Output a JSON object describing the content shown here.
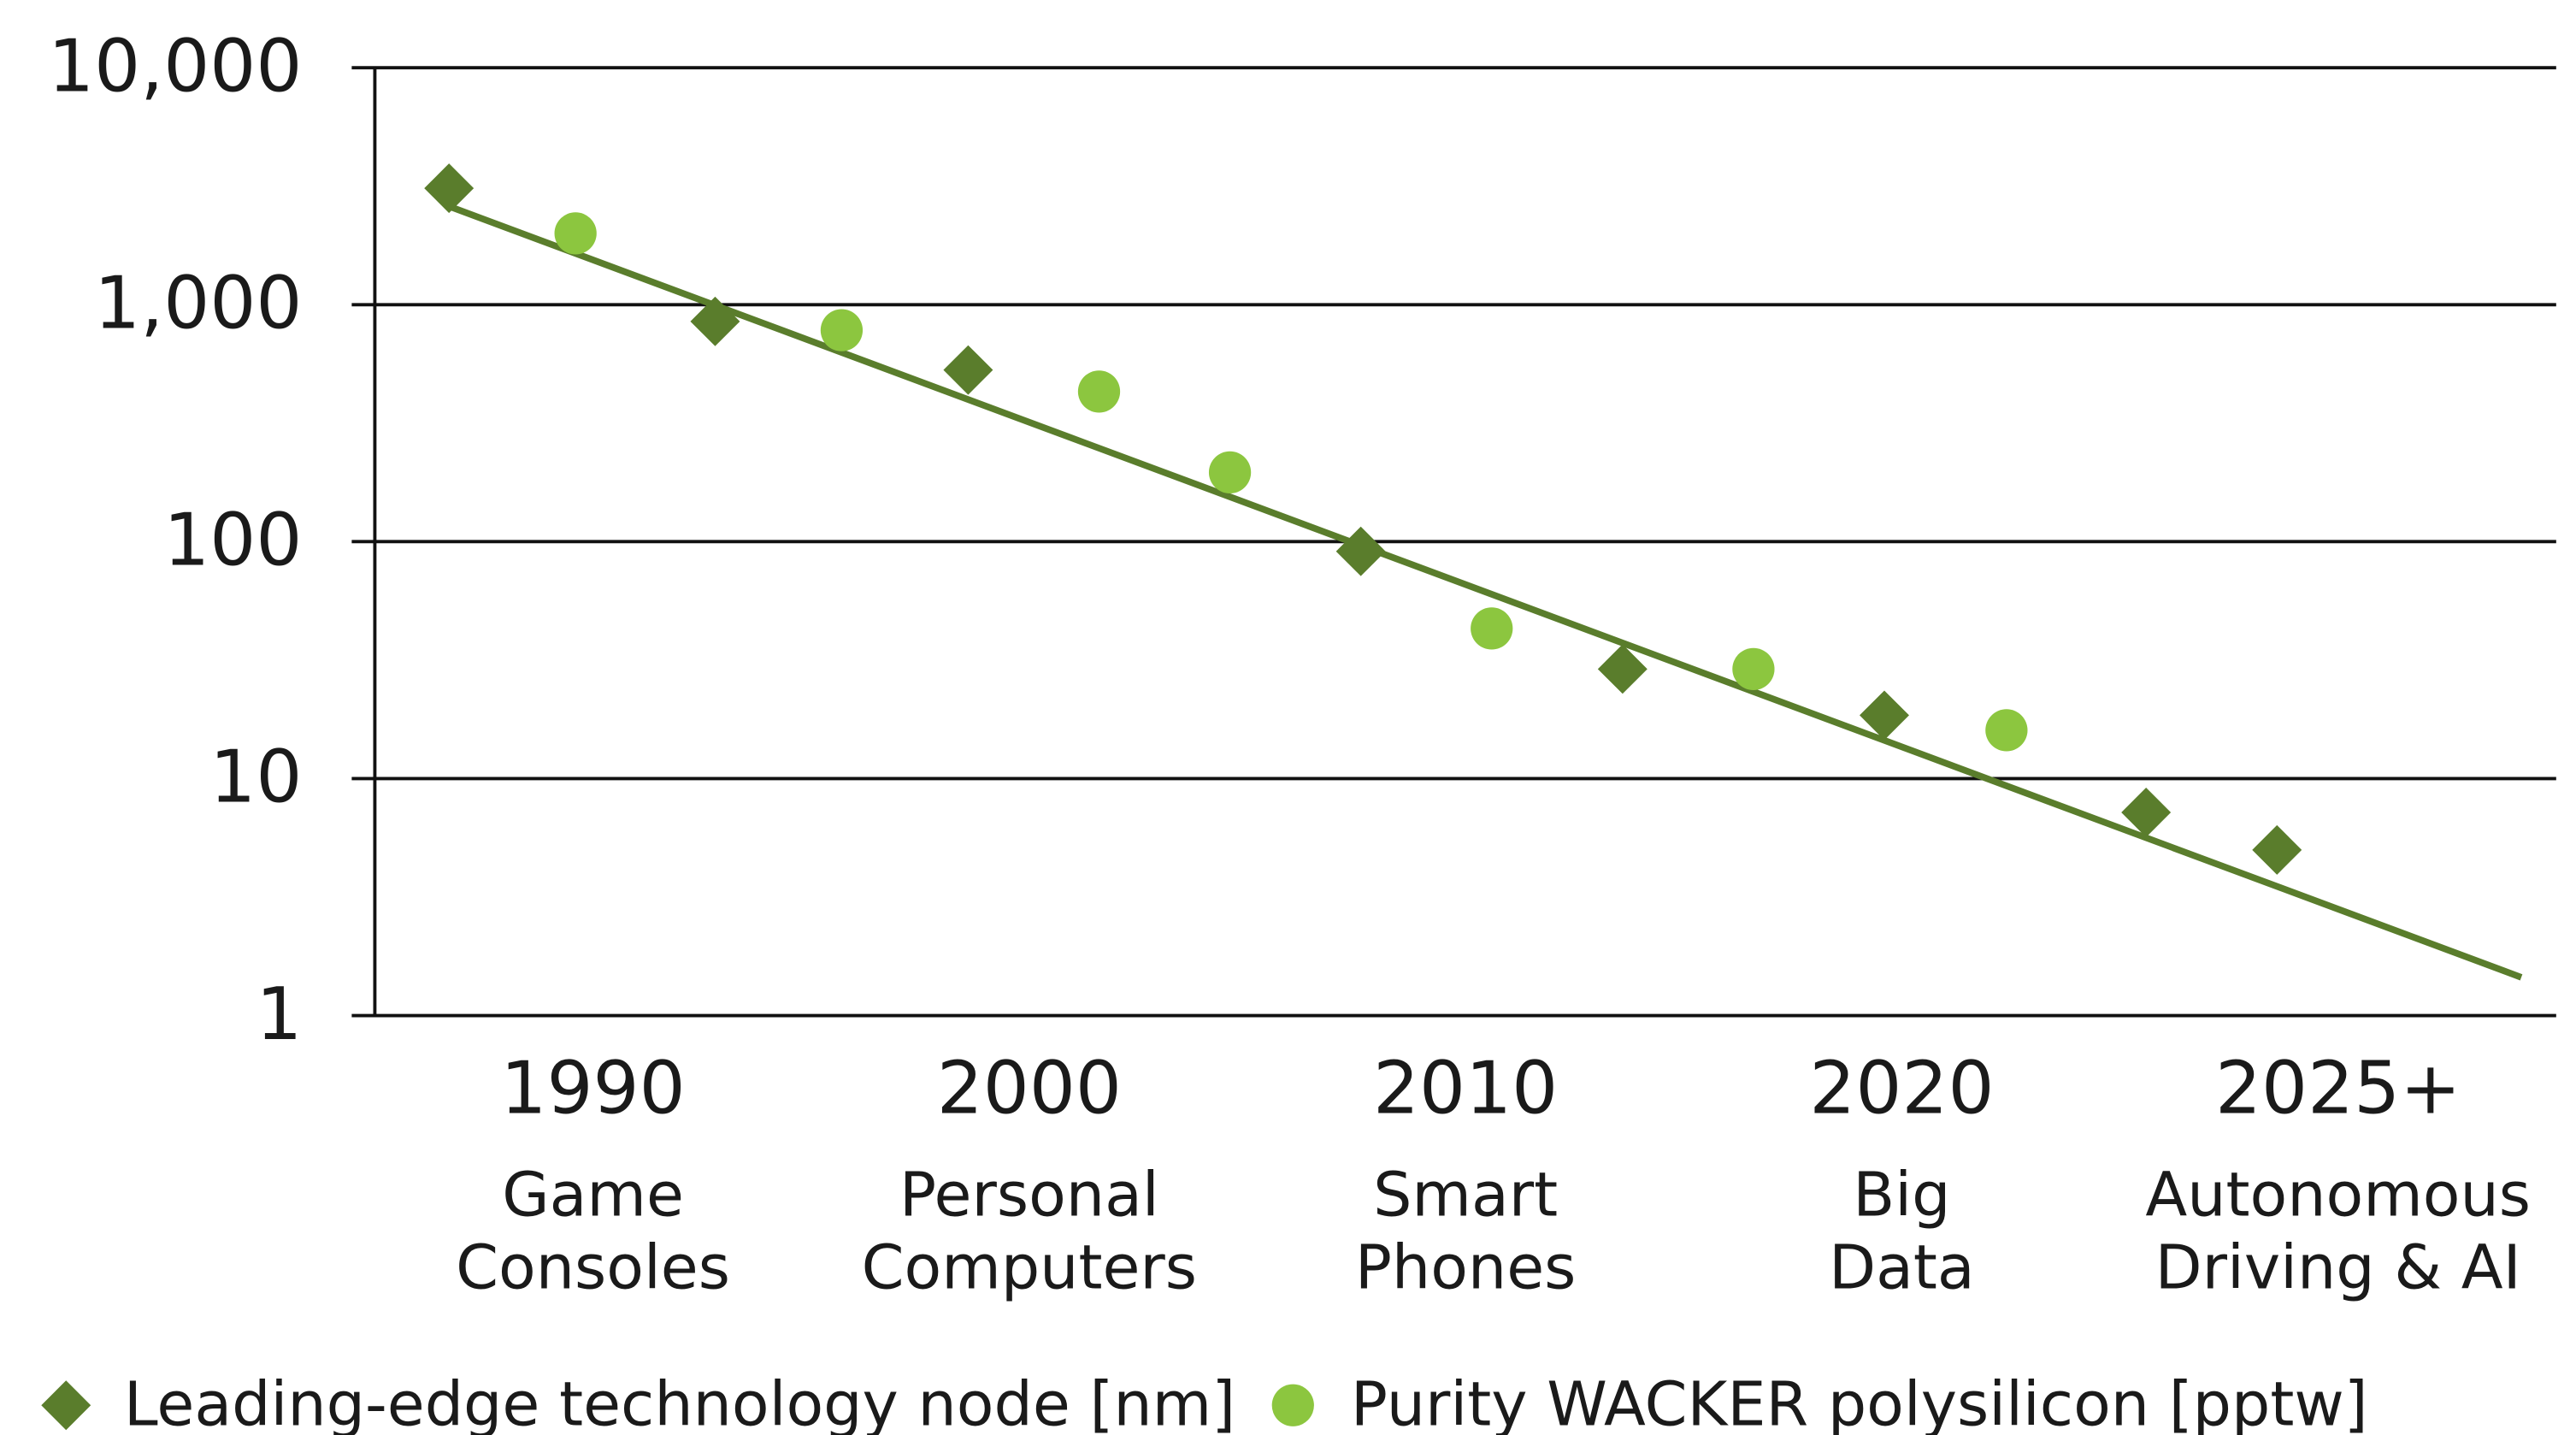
{
  "chart_data": {
    "type": "scatter",
    "log_y": true,
    "xlim": [
      1985,
      2035
    ],
    "ylim": [
      1,
      10000
    ],
    "yticks": [
      1,
      10,
      100,
      {
        "value": 1000,
        "label": "1,000"
      },
      {
        "value": 10000,
        "label": "10,000"
      }
    ],
    "xticks": [
      {
        "value": 1990,
        "label": "1990"
      },
      {
        "value": 2000,
        "label": "2000"
      },
      {
        "value": 2010,
        "label": "2010"
      },
      {
        "value": 2020,
        "label": "2020"
      },
      {
        "value": 2030,
        "label": "2025+"
      }
    ],
    "xtick_sublabels": [
      [
        "Game",
        "Consoles"
      ],
      [
        "Personal",
        "Computers"
      ],
      [
        "Smart",
        "Phones"
      ],
      [
        "Big",
        "Data"
      ],
      [
        "Autonomous",
        "Driving & AI"
      ]
    ],
    "grid": true,
    "legend": "bottom",
    "series": [
      {
        "name": "Leading-edge technology node [nm]",
        "marker": "diamond",
        "color": "#5a7d2c",
        "x": [
          1986.7,
          1992.8,
          1998.6,
          2007.6,
          2013.6,
          2019.6,
          2025.6,
          2028.6
        ],
        "values": [
          3100,
          850,
          530,
          91,
          29,
          18.5,
          7.2,
          5
        ]
      },
      {
        "name": "Purity WACKER polysilicon [pptw]",
        "marker": "circle",
        "color": "#8cc63f",
        "x": [
          1989.6,
          1995.7,
          2001.6,
          2004.6,
          2010.6,
          2016.6,
          2022.4
        ],
        "values": [
          2000,
          780,
          430,
          196,
          43,
          29,
          16
        ]
      }
    ],
    "trend": {
      "color": "#5a7d2c",
      "x": [
        1986.7,
        2034.2
      ],
      "values": [
        2600,
        1.45
      ]
    }
  }
}
